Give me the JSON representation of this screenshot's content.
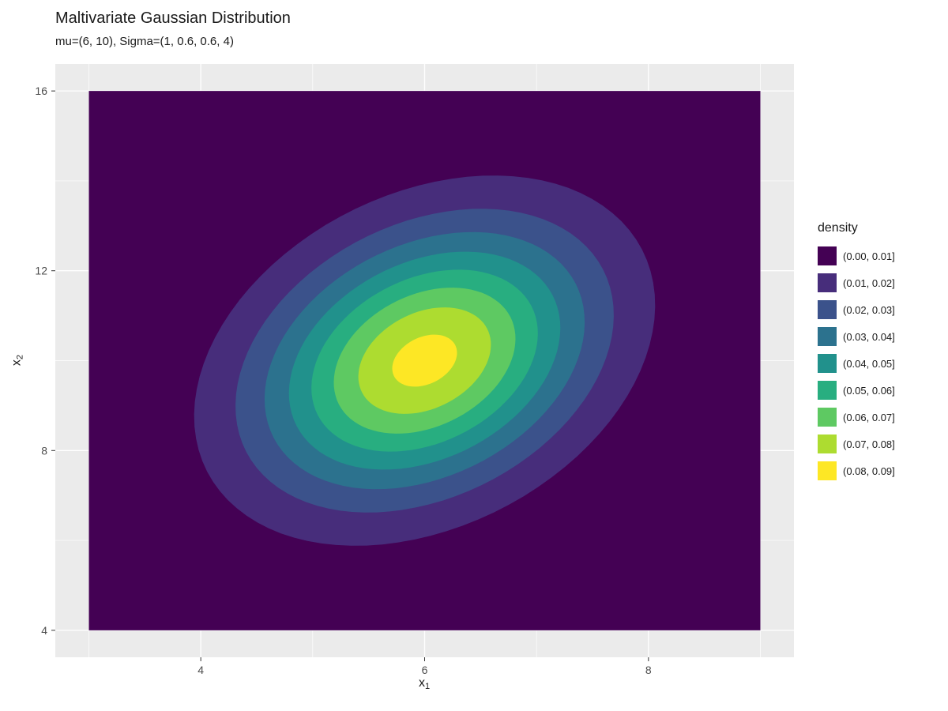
{
  "chart_data": {
    "type": "heatmap",
    "subtype": "filled_contour",
    "title": "Maltivariate Gaussian Distribution",
    "subtitle": "mu=(6, 10), Sigma=(1, 0.6, 0.6, 4)",
    "distribution": {
      "mu": [
        6,
        10
      ],
      "sigma": [
        [
          1,
          0.6
        ],
        [
          0.6,
          4
        ]
      ]
    },
    "x_range": [
      3,
      9
    ],
    "y_range": [
      4,
      16
    ],
    "xlabel": {
      "base": "x",
      "sub": "1"
    },
    "ylabel": {
      "base": "x",
      "sub": "2"
    },
    "x_ticks": [
      4,
      6,
      8
    ],
    "y_ticks": [
      4,
      8,
      12,
      16
    ],
    "x_minor_ticks": [
      3,
      5,
      7,
      9
    ],
    "y_minor_ticks": [
      6,
      10,
      14
    ],
    "contour_levels": [
      0.01,
      0.02,
      0.03,
      0.04,
      0.05,
      0.06,
      0.07,
      0.08
    ],
    "grid": true,
    "legend_position": "right",
    "panel_bg": "#EBEBEB",
    "grid_color": "#FFFFFF",
    "tick_color": "#333333",
    "tick_label_color": "#4D4D4D",
    "legend": {
      "title": "density",
      "entries": [
        {
          "label": "(0.00, 0.01]",
          "color": "#440154"
        },
        {
          "label": "(0.01, 0.02]",
          "color": "#472D7B"
        },
        {
          "label": "(0.02, 0.03]",
          "color": "#3B528B"
        },
        {
          "label": "(0.03, 0.04]",
          "color": "#2C728E"
        },
        {
          "label": "(0.04, 0.05]",
          "color": "#21918C"
        },
        {
          "label": "(0.05, 0.06]",
          "color": "#28AE80"
        },
        {
          "label": "(0.06, 0.07]",
          "color": "#5EC962"
        },
        {
          "label": "(0.07, 0.08]",
          "color": "#ADDC30"
        },
        {
          "label": "(0.08, 0.09]",
          "color": "#FDE725"
        }
      ]
    }
  }
}
